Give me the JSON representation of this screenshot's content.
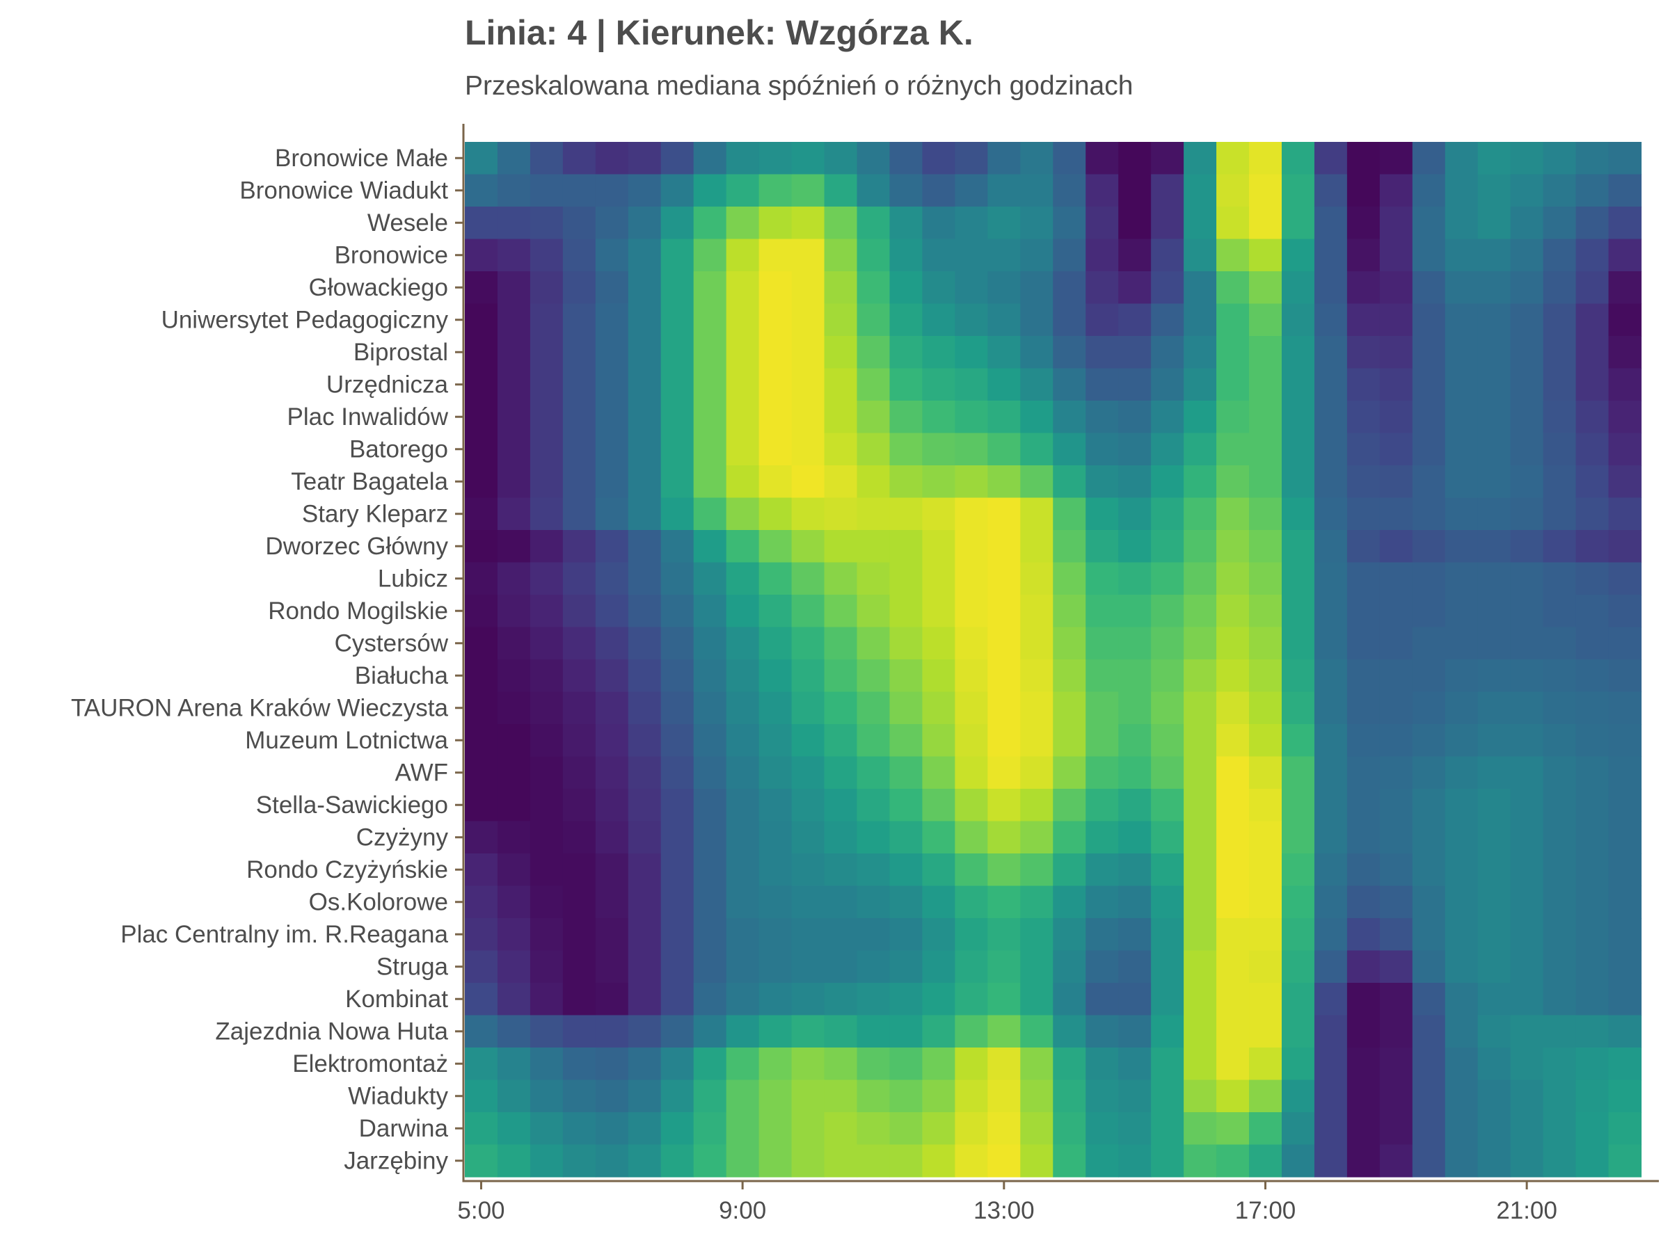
{
  "chart_data": {
    "type": "heatmap",
    "title": "Linia: 4 | Kierunek: Wzgórza K.",
    "subtitle": "Przeskalowana mediana spóźnień o różnych godzinach",
    "xlabel": "",
    "ylabel": "",
    "x_ticks": [
      "5:00",
      "9:00",
      "13:00",
      "17:00",
      "21:00"
    ],
    "x_tick_hours": [
      5,
      9,
      13,
      17,
      21
    ],
    "x_range_hours": [
      4.75,
      23
    ],
    "color_scale": "viridis",
    "value_range": [
      0,
      1
    ],
    "grid": false,
    "hours": [
      5,
      5.5,
      6,
      6.5,
      7,
      7.5,
      8,
      8.5,
      9,
      9.5,
      10,
      10.5,
      11,
      11.5,
      12,
      12.5,
      13,
      13.5,
      14,
      14.5,
      15,
      15.5,
      16,
      16.5,
      17,
      17.5,
      18,
      18.5,
      19,
      19.5,
      20,
      20.5,
      21,
      21.5,
      22,
      22.5
    ],
    "stops": [
      "Bronowice Małe",
      "Bronowice Wiadukt",
      "Wesele",
      "Bronowice",
      "Głowackiego",
      "Uniwersytet Pedagogiczny",
      "Biprostal",
      "Urzędnicza",
      "Plac Inwalidów",
      "Batorego",
      "Teatr Bagatela",
      "Stary Kleparz",
      "Dworzec Główny",
      "Lubicz",
      "Rondo Mogilskie",
      "Cystersów",
      "Białucha",
      "TAURON Arena Kraków Wieczysta",
      "Muzeum Lotnictwa",
      "AWF",
      "Stella-Sawickiego",
      "Czyżyny",
      "Rondo Czyżyńskie",
      "Os.Kolorowe",
      "Plac Centralny im. R.Reagana",
      "Struga",
      "Kombinat",
      "Zajezdnia Nowa Huta",
      "Elektromontaż",
      "Wiadukty",
      "Darwina",
      "Jarzębiny"
    ],
    "values": [
      [
        0.45,
        0.35,
        0.25,
        0.18,
        0.14,
        0.16,
        0.24,
        0.38,
        0.48,
        0.5,
        0.52,
        0.48,
        0.4,
        0.3,
        0.22,
        0.25,
        0.35,
        0.4,
        0.3,
        0.05,
        0.02,
        0.05,
        0.5,
        0.92,
        0.96,
        0.6,
        0.18,
        0.02,
        0.03,
        0.3,
        0.45,
        0.5,
        0.48,
        0.45,
        0.4,
        0.38
      ],
      [
        0.35,
        0.32,
        0.3,
        0.3,
        0.3,
        0.33,
        0.42,
        0.55,
        0.62,
        0.7,
        0.72,
        0.6,
        0.45,
        0.35,
        0.3,
        0.35,
        0.42,
        0.42,
        0.32,
        0.12,
        0.02,
        0.15,
        0.52,
        0.93,
        0.97,
        0.62,
        0.25,
        0.02,
        0.1,
        0.33,
        0.45,
        0.48,
        0.45,
        0.4,
        0.35,
        0.3
      ],
      [
        0.22,
        0.22,
        0.23,
        0.27,
        0.32,
        0.38,
        0.52,
        0.68,
        0.8,
        0.88,
        0.9,
        0.78,
        0.62,
        0.5,
        0.42,
        0.45,
        0.48,
        0.45,
        0.35,
        0.14,
        0.02,
        0.15,
        0.52,
        0.92,
        0.97,
        0.62,
        0.28,
        0.03,
        0.12,
        0.35,
        0.45,
        0.48,
        0.42,
        0.36,
        0.28,
        0.22
      ],
      [
        0.1,
        0.12,
        0.18,
        0.26,
        0.35,
        0.42,
        0.58,
        0.75,
        0.9,
        0.97,
        0.97,
        0.82,
        0.65,
        0.52,
        0.45,
        0.45,
        0.45,
        0.42,
        0.32,
        0.12,
        0.05,
        0.2,
        0.5,
        0.82,
        0.88,
        0.55,
        0.28,
        0.05,
        0.12,
        0.35,
        0.42,
        0.42,
        0.38,
        0.3,
        0.22,
        0.12
      ],
      [
        0.03,
        0.08,
        0.16,
        0.24,
        0.32,
        0.42,
        0.58,
        0.78,
        0.92,
        0.98,
        0.97,
        0.85,
        0.68,
        0.55,
        0.48,
        0.45,
        0.42,
        0.38,
        0.28,
        0.15,
        0.1,
        0.22,
        0.42,
        0.72,
        0.8,
        0.52,
        0.28,
        0.08,
        0.1,
        0.3,
        0.38,
        0.38,
        0.35,
        0.28,
        0.2,
        0.05
      ],
      [
        0.02,
        0.08,
        0.17,
        0.26,
        0.33,
        0.42,
        0.58,
        0.78,
        0.92,
        0.98,
        0.97,
        0.86,
        0.7,
        0.58,
        0.52,
        0.48,
        0.45,
        0.38,
        0.28,
        0.18,
        0.2,
        0.3,
        0.42,
        0.68,
        0.75,
        0.5,
        0.3,
        0.12,
        0.12,
        0.28,
        0.35,
        0.35,
        0.32,
        0.25,
        0.15,
        0.03
      ],
      [
        0.02,
        0.08,
        0.17,
        0.26,
        0.33,
        0.42,
        0.58,
        0.78,
        0.92,
        0.98,
        0.97,
        0.88,
        0.74,
        0.62,
        0.58,
        0.55,
        0.5,
        0.42,
        0.32,
        0.25,
        0.25,
        0.35,
        0.45,
        0.68,
        0.72,
        0.52,
        0.32,
        0.16,
        0.15,
        0.28,
        0.35,
        0.35,
        0.32,
        0.25,
        0.15,
        0.05
      ],
      [
        0.02,
        0.08,
        0.17,
        0.26,
        0.33,
        0.42,
        0.58,
        0.78,
        0.92,
        0.98,
        0.97,
        0.9,
        0.78,
        0.66,
        0.62,
        0.6,
        0.55,
        0.48,
        0.38,
        0.3,
        0.3,
        0.38,
        0.48,
        0.68,
        0.72,
        0.52,
        0.32,
        0.2,
        0.18,
        0.28,
        0.35,
        0.35,
        0.32,
        0.25,
        0.15,
        0.08
      ],
      [
        0.02,
        0.08,
        0.17,
        0.26,
        0.33,
        0.42,
        0.58,
        0.78,
        0.92,
        0.98,
        0.97,
        0.9,
        0.82,
        0.72,
        0.68,
        0.65,
        0.62,
        0.55,
        0.45,
        0.38,
        0.36,
        0.45,
        0.55,
        0.7,
        0.72,
        0.52,
        0.32,
        0.22,
        0.2,
        0.28,
        0.35,
        0.35,
        0.32,
        0.26,
        0.18,
        0.1
      ],
      [
        0.02,
        0.08,
        0.17,
        0.26,
        0.33,
        0.42,
        0.58,
        0.78,
        0.92,
        0.98,
        0.97,
        0.92,
        0.86,
        0.78,
        0.75,
        0.74,
        0.7,
        0.62,
        0.52,
        0.42,
        0.4,
        0.5,
        0.6,
        0.72,
        0.72,
        0.52,
        0.32,
        0.24,
        0.22,
        0.28,
        0.35,
        0.35,
        0.32,
        0.27,
        0.2,
        0.12
      ],
      [
        0.02,
        0.08,
        0.17,
        0.26,
        0.33,
        0.42,
        0.58,
        0.78,
        0.9,
        0.96,
        0.98,
        0.95,
        0.9,
        0.85,
        0.83,
        0.85,
        0.82,
        0.75,
        0.6,
        0.48,
        0.46,
        0.55,
        0.65,
        0.75,
        0.72,
        0.52,
        0.32,
        0.26,
        0.25,
        0.3,
        0.35,
        0.35,
        0.33,
        0.28,
        0.22,
        0.15
      ],
      [
        0.03,
        0.1,
        0.18,
        0.26,
        0.34,
        0.42,
        0.55,
        0.7,
        0.82,
        0.88,
        0.92,
        0.93,
        0.92,
        0.92,
        0.94,
        0.97,
        0.98,
        0.92,
        0.72,
        0.56,
        0.52,
        0.6,
        0.7,
        0.8,
        0.75,
        0.55,
        0.33,
        0.28,
        0.28,
        0.3,
        0.33,
        0.33,
        0.32,
        0.28,
        0.24,
        0.2
      ],
      [
        0.02,
        0.03,
        0.08,
        0.15,
        0.22,
        0.3,
        0.4,
        0.55,
        0.68,
        0.78,
        0.84,
        0.88,
        0.88,
        0.88,
        0.92,
        0.97,
        0.98,
        0.92,
        0.74,
        0.6,
        0.56,
        0.62,
        0.72,
        0.82,
        0.78,
        0.58,
        0.35,
        0.25,
        0.22,
        0.25,
        0.28,
        0.28,
        0.26,
        0.22,
        0.18,
        0.16
      ],
      [
        0.04,
        0.08,
        0.12,
        0.18,
        0.24,
        0.3,
        0.38,
        0.48,
        0.58,
        0.68,
        0.75,
        0.82,
        0.86,
        0.88,
        0.92,
        0.97,
        0.98,
        0.93,
        0.78,
        0.66,
        0.64,
        0.68,
        0.75,
        0.84,
        0.8,
        0.58,
        0.36,
        0.3,
        0.3,
        0.3,
        0.32,
        0.32,
        0.32,
        0.3,
        0.28,
        0.26
      ],
      [
        0.03,
        0.07,
        0.1,
        0.16,
        0.22,
        0.28,
        0.35,
        0.45,
        0.55,
        0.62,
        0.7,
        0.78,
        0.84,
        0.88,
        0.92,
        0.97,
        0.98,
        0.94,
        0.8,
        0.68,
        0.68,
        0.72,
        0.78,
        0.86,
        0.82,
        0.58,
        0.36,
        0.3,
        0.3,
        0.3,
        0.32,
        0.32,
        0.32,
        0.3,
        0.3,
        0.28
      ],
      [
        0.02,
        0.05,
        0.08,
        0.12,
        0.18,
        0.24,
        0.32,
        0.42,
        0.5,
        0.58,
        0.65,
        0.72,
        0.8,
        0.86,
        0.9,
        0.96,
        0.98,
        0.94,
        0.82,
        0.7,
        0.7,
        0.74,
        0.8,
        0.88,
        0.84,
        0.58,
        0.36,
        0.3,
        0.3,
        0.32,
        0.32,
        0.32,
        0.32,
        0.32,
        0.3,
        0.3
      ],
      [
        0.02,
        0.04,
        0.06,
        0.1,
        0.15,
        0.22,
        0.3,
        0.4,
        0.48,
        0.55,
        0.62,
        0.7,
        0.76,
        0.82,
        0.88,
        0.95,
        0.98,
        0.95,
        0.84,
        0.72,
        0.72,
        0.76,
        0.84,
        0.9,
        0.86,
        0.6,
        0.38,
        0.32,
        0.32,
        0.32,
        0.34,
        0.35,
        0.35,
        0.34,
        0.33,
        0.32
      ],
      [
        0.02,
        0.03,
        0.05,
        0.08,
        0.12,
        0.2,
        0.28,
        0.38,
        0.46,
        0.52,
        0.6,
        0.66,
        0.72,
        0.8,
        0.86,
        0.94,
        0.98,
        0.96,
        0.86,
        0.74,
        0.72,
        0.78,
        0.86,
        0.93,
        0.88,
        0.62,
        0.38,
        0.32,
        0.32,
        0.33,
        0.36,
        0.38,
        0.38,
        0.36,
        0.35,
        0.34
      ],
      [
        0.02,
        0.02,
        0.04,
        0.07,
        0.11,
        0.18,
        0.26,
        0.36,
        0.44,
        0.5,
        0.56,
        0.62,
        0.7,
        0.76,
        0.84,
        0.93,
        0.98,
        0.96,
        0.86,
        0.74,
        0.7,
        0.76,
        0.86,
        0.95,
        0.9,
        0.66,
        0.4,
        0.33,
        0.33,
        0.35,
        0.38,
        0.4,
        0.4,
        0.38,
        0.36,
        0.35
      ],
      [
        0.02,
        0.02,
        0.03,
        0.06,
        0.1,
        0.16,
        0.24,
        0.34,
        0.42,
        0.48,
        0.52,
        0.58,
        0.64,
        0.7,
        0.8,
        0.92,
        0.97,
        0.94,
        0.82,
        0.7,
        0.68,
        0.74,
        0.86,
        0.98,
        0.94,
        0.7,
        0.4,
        0.34,
        0.35,
        0.38,
        0.42,
        0.44,
        0.44,
        0.4,
        0.38,
        0.36
      ],
      [
        0.02,
        0.02,
        0.03,
        0.05,
        0.09,
        0.15,
        0.22,
        0.32,
        0.4,
        0.45,
        0.5,
        0.54,
        0.6,
        0.66,
        0.75,
        0.86,
        0.92,
        0.88,
        0.74,
        0.64,
        0.6,
        0.68,
        0.86,
        0.98,
        0.96,
        0.7,
        0.4,
        0.34,
        0.36,
        0.4,
        0.44,
        0.46,
        0.44,
        0.4,
        0.38,
        0.36
      ],
      [
        0.06,
        0.04,
        0.03,
        0.04,
        0.08,
        0.14,
        0.22,
        0.32,
        0.4,
        0.44,
        0.48,
        0.52,
        0.56,
        0.6,
        0.68,
        0.8,
        0.86,
        0.82,
        0.68,
        0.58,
        0.55,
        0.64,
        0.86,
        0.98,
        0.97,
        0.7,
        0.4,
        0.34,
        0.36,
        0.4,
        0.44,
        0.46,
        0.44,
        0.4,
        0.38,
        0.36
      ],
      [
        0.1,
        0.06,
        0.03,
        0.03,
        0.06,
        0.12,
        0.22,
        0.32,
        0.4,
        0.44,
        0.46,
        0.48,
        0.5,
        0.54,
        0.6,
        0.7,
        0.76,
        0.72,
        0.6,
        0.5,
        0.48,
        0.58,
        0.86,
        0.98,
        0.97,
        0.68,
        0.38,
        0.32,
        0.34,
        0.4,
        0.44,
        0.46,
        0.44,
        0.4,
        0.38,
        0.36
      ],
      [
        0.12,
        0.08,
        0.04,
        0.03,
        0.06,
        0.12,
        0.22,
        0.32,
        0.4,
        0.42,
        0.44,
        0.44,
        0.46,
        0.48,
        0.54,
        0.62,
        0.66,
        0.62,
        0.52,
        0.44,
        0.42,
        0.54,
        0.86,
        0.98,
        0.97,
        0.66,
        0.36,
        0.28,
        0.3,
        0.38,
        0.44,
        0.46,
        0.44,
        0.4,
        0.38,
        0.36
      ],
      [
        0.14,
        0.1,
        0.05,
        0.03,
        0.05,
        0.12,
        0.22,
        0.32,
        0.38,
        0.4,
        0.42,
        0.42,
        0.42,
        0.44,
        0.5,
        0.58,
        0.62,
        0.58,
        0.48,
        0.38,
        0.36,
        0.52,
        0.86,
        0.96,
        0.96,
        0.64,
        0.34,
        0.22,
        0.26,
        0.38,
        0.44,
        0.46,
        0.44,
        0.4,
        0.38,
        0.36
      ],
      [
        0.18,
        0.12,
        0.06,
        0.03,
        0.05,
        0.12,
        0.22,
        0.32,
        0.38,
        0.4,
        0.42,
        0.42,
        0.44,
        0.46,
        0.52,
        0.6,
        0.64,
        0.58,
        0.46,
        0.34,
        0.32,
        0.52,
        0.88,
        0.96,
        0.95,
        0.62,
        0.3,
        0.12,
        0.15,
        0.36,
        0.44,
        0.46,
        0.44,
        0.4,
        0.38,
        0.36
      ],
      [
        0.22,
        0.14,
        0.07,
        0.03,
        0.04,
        0.12,
        0.22,
        0.34,
        0.4,
        0.44,
        0.46,
        0.48,
        0.5,
        0.52,
        0.56,
        0.62,
        0.66,
        0.58,
        0.44,
        0.3,
        0.3,
        0.52,
        0.88,
        0.96,
        0.96,
        0.6,
        0.22,
        0.03,
        0.05,
        0.28,
        0.4,
        0.44,
        0.44,
        0.4,
        0.38,
        0.36
      ],
      [
        0.35,
        0.3,
        0.25,
        0.22,
        0.22,
        0.25,
        0.32,
        0.42,
        0.52,
        0.58,
        0.62,
        0.6,
        0.56,
        0.56,
        0.62,
        0.72,
        0.78,
        0.68,
        0.5,
        0.4,
        0.38,
        0.55,
        0.88,
        0.96,
        0.96,
        0.6,
        0.2,
        0.03,
        0.05,
        0.26,
        0.4,
        0.46,
        0.48,
        0.48,
        0.48,
        0.46
      ],
      [
        0.5,
        0.45,
        0.38,
        0.33,
        0.32,
        0.36,
        0.45,
        0.58,
        0.7,
        0.78,
        0.82,
        0.8,
        0.74,
        0.72,
        0.78,
        0.9,
        0.95,
        0.82,
        0.6,
        0.48,
        0.45,
        0.58,
        0.88,
        0.96,
        0.92,
        0.58,
        0.2,
        0.04,
        0.06,
        0.26,
        0.38,
        0.44,
        0.48,
        0.5,
        0.52,
        0.54
      ],
      [
        0.54,
        0.48,
        0.42,
        0.38,
        0.36,
        0.4,
        0.5,
        0.62,
        0.74,
        0.8,
        0.84,
        0.84,
        0.8,
        0.78,
        0.82,
        0.92,
        0.96,
        0.84,
        0.62,
        0.5,
        0.48,
        0.58,
        0.84,
        0.9,
        0.82,
        0.52,
        0.2,
        0.04,
        0.06,
        0.26,
        0.38,
        0.42,
        0.46,
        0.5,
        0.53,
        0.56
      ],
      [
        0.58,
        0.54,
        0.48,
        0.44,
        0.42,
        0.46,
        0.55,
        0.64,
        0.74,
        0.8,
        0.84,
        0.86,
        0.84,
        0.82,
        0.86,
        0.94,
        0.97,
        0.86,
        0.64,
        0.52,
        0.5,
        0.58,
        0.76,
        0.78,
        0.68,
        0.48,
        0.2,
        0.04,
        0.06,
        0.26,
        0.38,
        0.42,
        0.46,
        0.5,
        0.54,
        0.58
      ],
      [
        0.62,
        0.58,
        0.52,
        0.48,
        0.46,
        0.5,
        0.58,
        0.66,
        0.74,
        0.8,
        0.84,
        0.86,
        0.86,
        0.86,
        0.9,
        0.96,
        0.98,
        0.88,
        0.66,
        0.54,
        0.52,
        0.58,
        0.7,
        0.68,
        0.6,
        0.44,
        0.2,
        0.04,
        0.08,
        0.26,
        0.38,
        0.42,
        0.46,
        0.5,
        0.54,
        0.6
      ]
    ]
  }
}
